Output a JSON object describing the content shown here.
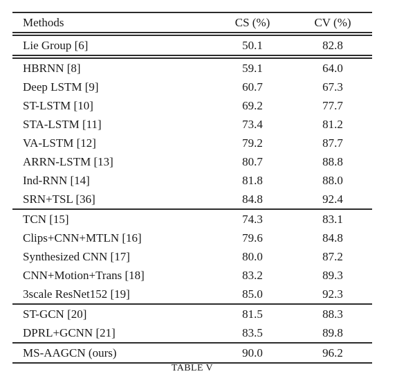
{
  "colors": {
    "background": "#ffffff",
    "text": "#1a1a1a",
    "rule": "#2b2b2b"
  },
  "table": {
    "columns": [
      {
        "label": "Methods"
      },
      {
        "label": "CS (%)"
      },
      {
        "label": "CV (%)"
      }
    ],
    "rows": [
      {
        "method": "Lie Group [6]",
        "cs": "50.1",
        "cv": "82.8"
      },
      {
        "method": "HBRNN [8]",
        "cs": "59.1",
        "cv": "64.0"
      },
      {
        "method": "Deep LSTM [9]",
        "cs": "60.7",
        "cv": "67.3"
      },
      {
        "method": "ST-LSTM [10]",
        "cs": "69.2",
        "cv": "77.7"
      },
      {
        "method": "STA-LSTM [11]",
        "cs": "73.4",
        "cv": "81.2"
      },
      {
        "method": "VA-LSTM [12]",
        "cs": "79.2",
        "cv": "87.7"
      },
      {
        "method": "ARRN-LSTM [13]",
        "cs": "80.7",
        "cv": "88.8"
      },
      {
        "method": "Ind-RNN [14]",
        "cs": "81.8",
        "cv": "88.0"
      },
      {
        "method": "SRN+TSL [36]",
        "cs": "84.8",
        "cv": "92.4"
      },
      {
        "method": "TCN [15]",
        "cs": "74.3",
        "cv": "83.1"
      },
      {
        "method": "Clips+CNN+MTLN [16]",
        "cs": "79.6",
        "cv": "84.8"
      },
      {
        "method": "Synthesized CNN [17]",
        "cs": "80.0",
        "cv": "87.2"
      },
      {
        "method": "CNN+Motion+Trans [18]",
        "cs": "83.2",
        "cv": "89.3"
      },
      {
        "method": "3scale ResNet152 [19]",
        "cs": "85.0",
        "cv": "92.3"
      },
      {
        "method": "ST-GCN [20]",
        "cs": "81.5",
        "cv": "88.3"
      },
      {
        "method": "DPRL+GCNN [21]",
        "cs": "83.5",
        "cv": "89.8"
      },
      {
        "method": "MS-AAGCN (ours)",
        "cs": "90.0",
        "cv": "96.2"
      }
    ]
  },
  "caption": {
    "text": "TABLE V"
  }
}
